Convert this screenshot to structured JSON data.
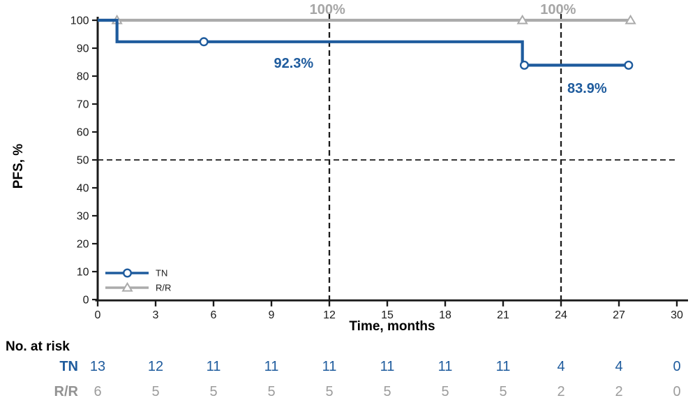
{
  "chart_data": {
    "type": "line",
    "subtype": "kaplan-meier-step",
    "title": "",
    "xlabel": "Time, months",
    "ylabel": "PFS, %",
    "xlim": [
      0,
      30
    ],
    "ylim": [
      0,
      100
    ],
    "xticks": [
      0,
      3,
      6,
      9,
      12,
      15,
      18,
      21,
      24,
      27,
      30
    ],
    "yticks": [
      0,
      10,
      20,
      30,
      40,
      50,
      60,
      70,
      80,
      90,
      100
    ],
    "grid": false,
    "legend_position": "lower-left-inside",
    "axis_color": "#1a1a1a",
    "series": [
      {
        "name": "TN",
        "color": "#1e5b9d",
        "marker": "circle",
        "steps": [
          [
            0,
            100
          ],
          [
            1,
            100
          ],
          [
            1,
            92.3
          ],
          [
            22,
            92.3
          ],
          [
            22,
            83.9
          ],
          [
            27.5,
            83.9
          ]
        ],
        "censors": [
          [
            5.5,
            92.3
          ],
          [
            22.1,
            83.9
          ],
          [
            27.5,
            83.9
          ]
        ]
      },
      {
        "name": "R/R",
        "color": "#ababab",
        "marker": "triangle",
        "steps": [
          [
            0,
            100
          ],
          [
            27.6,
            100
          ]
        ],
        "censors": [
          [
            1,
            100
          ],
          [
            22,
            100
          ],
          [
            27.6,
            100
          ]
        ]
      }
    ],
    "annotations": [
      {
        "text": "100%",
        "month": 11.9,
        "pct": 104,
        "color": "#a6a6a6"
      },
      {
        "text": "100%",
        "month": 23.85,
        "pct": 104,
        "color": "#a6a6a6"
      },
      {
        "text": "92.3%",
        "month": 10.15,
        "pct": 84.7,
        "color": "#1e5b9d"
      },
      {
        "text": "83.9%",
        "month": 25.35,
        "pct": 75.8,
        "color": "#1e5b9d"
      }
    ],
    "reference_lines": {
      "horizontal_pct": 50,
      "vertical_months": [
        12,
        24
      ]
    }
  },
  "risk_table": {
    "title": "No. at risk",
    "months": [
      0,
      3,
      6,
      9,
      12,
      15,
      18,
      21,
      24,
      27,
      30
    ],
    "rows": [
      {
        "label": "TN",
        "label_color": "#1e5b9d",
        "num_color": "#1e5b9d",
        "values": [
          "13",
          "12",
          "11",
          "11",
          "11",
          "11",
          "11",
          "11",
          "4",
          "4",
          "0"
        ]
      },
      {
        "label": "R/R",
        "label_color": "#929292",
        "num_color": "#9c9c9c",
        "values": [
          "6",
          "5",
          "5",
          "5",
          "5",
          "5",
          "5",
          "5",
          "2",
          "2",
          "0"
        ]
      }
    ]
  }
}
